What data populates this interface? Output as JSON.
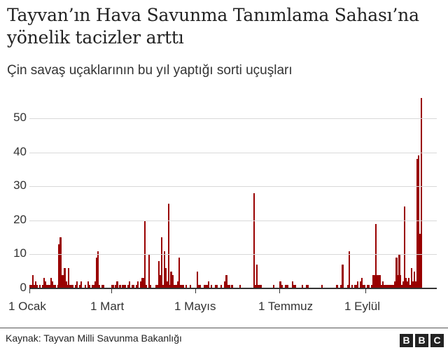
{
  "header": {
    "title": "Tayvan’ın Hava Savunma Tanımlama Sahası’na yönelik tacizler arttı",
    "subtitle": "Çin savaş uçaklarının bu yıl yaptığı sorti uçuşları"
  },
  "footer": {
    "source": "Kaynak: Tayvan Milli Savunma Bakanlığı",
    "logo_letters": [
      "B",
      "B",
      "C"
    ]
  },
  "colors": {
    "bar": "#990000",
    "grid": "#d9d9d9",
    "axis": "#333333",
    "text": "#222222"
  },
  "chart_data": {
    "type": "bar",
    "title": "Tayvan’ın Hava Savunma Tanımlama Sahası’na yönelik tacizler arttı",
    "subtitle": "Çin savaş uçaklarının bu yıl yaptığı sorti uçuşları",
    "xlabel": "",
    "ylabel": "",
    "ylim": [
      0,
      56
    ],
    "yticks": [
      0,
      10,
      20,
      30,
      40,
      50
    ],
    "xtick_labels": [
      "1 Ocak",
      "1 Mart",
      "1 Mayıs",
      "1 Temmuz",
      "1 Eylül"
    ],
    "xtick_day_index": [
      0,
      59,
      120,
      181,
      243
    ],
    "grid": true,
    "legend": null,
    "x_unit": "day of year (0 = 1 Ocak)",
    "values": [
      1,
      1,
      4,
      1,
      2,
      1,
      0,
      1,
      0,
      1,
      3,
      2,
      1,
      1,
      1,
      3,
      2,
      1,
      1,
      0,
      1,
      13,
      15,
      4,
      4,
      6,
      2,
      1,
      6,
      1,
      1,
      1,
      0,
      1,
      2,
      0,
      1,
      2,
      0,
      0,
      1,
      0,
      2,
      1,
      0,
      1,
      1,
      2,
      9,
      11,
      1,
      0,
      1,
      1,
      0,
      0,
      0,
      0,
      0,
      1,
      1,
      0,
      1,
      2,
      0,
      1,
      0,
      1,
      1,
      1,
      0,
      1,
      2,
      0,
      1,
      1,
      0,
      1,
      2,
      0,
      2,
      3,
      3,
      20,
      1,
      0,
      10,
      1,
      0,
      0,
      0,
      1,
      1,
      8,
      4,
      15,
      1,
      11,
      6,
      2,
      25,
      1,
      5,
      4,
      1,
      1,
      1,
      2,
      9,
      1,
      1,
      1,
      0,
      1,
      0,
      0,
      1,
      0,
      0,
      0,
      0,
      5,
      1,
      1,
      0,
      0,
      1,
      1,
      1,
      2,
      0,
      1,
      0,
      0,
      1,
      1,
      0,
      0,
      1,
      0,
      0,
      2,
      4,
      1,
      1,
      0,
      1,
      0,
      0,
      0,
      0,
      0,
      1,
      0,
      0,
      0,
      0,
      0,
      0,
      0,
      0,
      0,
      28,
      1,
      7,
      1,
      1,
      1,
      0,
      0,
      0,
      0,
      0,
      0,
      0,
      0,
      1,
      0,
      0,
      0,
      0,
      2,
      1,
      0,
      0,
      1,
      1,
      0,
      0,
      0,
      2,
      1,
      1,
      0,
      0,
      0,
      0,
      1,
      0,
      0,
      1,
      1,
      0,
      0,
      0,
      0,
      0,
      0,
      0,
      0,
      0,
      1,
      0,
      0,
      0,
      0,
      0,
      0,
      0,
      0,
      0,
      0,
      1,
      0,
      0,
      1,
      7,
      0,
      0,
      0,
      1,
      11,
      0,
      1,
      0,
      1,
      1,
      2,
      0,
      2,
      3,
      1,
      1,
      0,
      1,
      1,
      0,
      1,
      4,
      4,
      19,
      4,
      4,
      4,
      1,
      2,
      1,
      1,
      1,
      1,
      1,
      1,
      1,
      1,
      2,
      9,
      4,
      10,
      4,
      1,
      2,
      24,
      3,
      2,
      3,
      1,
      6,
      2,
      5,
      2,
      38,
      39,
      16,
      56,
      0,
      0
    ]
  }
}
